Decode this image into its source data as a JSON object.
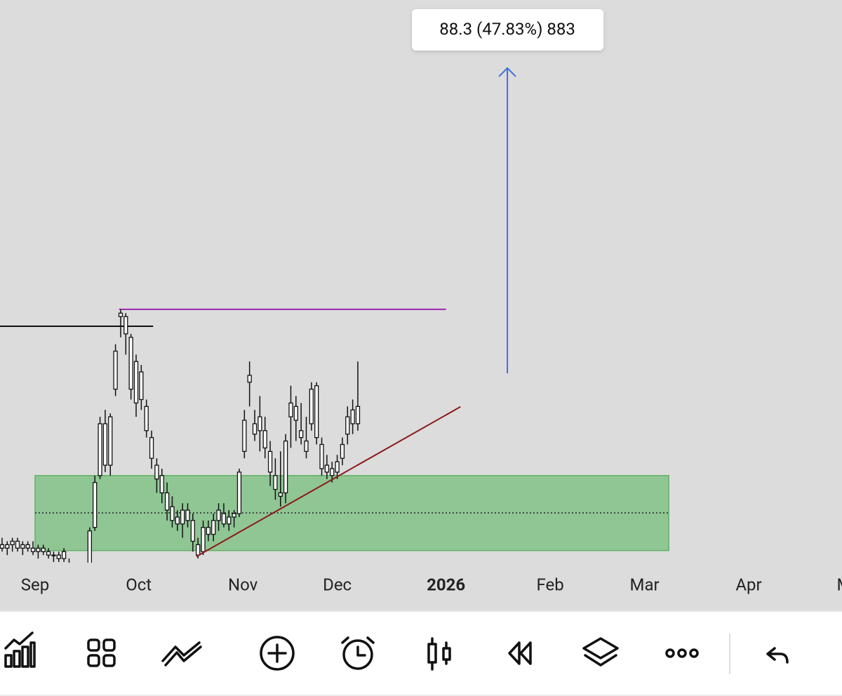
{
  "chart_data": {
    "type": "candlestick",
    "xlim": [
      -0.4,
      162.9
    ],
    "ylim": [
      130.2,
      292.6
    ],
    "xticks": [
      {
        "value": 6.4,
        "label": "Sep"
      },
      {
        "value": 26.5,
        "label": "Oct"
      },
      {
        "value": 46.7,
        "label": "Nov"
      },
      {
        "value": 65.0,
        "label": "Dec"
      },
      {
        "value": 86.1,
        "label": "2026"
      },
      {
        "value": 106.3,
        "label": "Feb"
      },
      {
        "value": 124.6,
        "label": "Mar"
      },
      {
        "value": 144.8,
        "label": "Apr"
      },
      {
        "value": 163.3,
        "label": "M"
      }
    ],
    "candles": {
      "color": "#111111",
      "open": [
        135,
        134,
        135,
        136,
        134,
        135,
        134,
        133,
        134,
        133,
        132,
        132,
        131,
        129,
        128,
        126,
        127,
        128,
        140,
        155,
        170,
        158,
        180,
        201,
        201,
        195,
        188,
        185,
        175,
        166,
        158,
        155,
        150,
        146,
        143,
        141,
        145,
        142,
        135,
        133,
        140,
        138,
        142,
        144,
        141,
        143,
        144,
        162,
        184,
        170,
        172,
        168,
        162,
        155,
        150,
        150,
        172,
        175,
        168,
        165,
        170,
        181,
        164,
        158,
        157,
        156,
        160,
        167,
        170,
        175
      ],
      "high": [
        137,
        136,
        137,
        137,
        136,
        136,
        136,
        135,
        135,
        134,
        133,
        133,
        134,
        131,
        129,
        128,
        129,
        140,
        155,
        172,
        174,
        173,
        193,
        203,
        202,
        196,
        190,
        187,
        177,
        168,
        160,
        157,
        153,
        149,
        145,
        147,
        147,
        144,
        137,
        142,
        142,
        144,
        147,
        147,
        145,
        145,
        157,
        174,
        188,
        174,
        178,
        172,
        165,
        160,
        162,
        167,
        181,
        178,
        176,
        172,
        182,
        182,
        166,
        161,
        159,
        161,
        166,
        175,
        177,
        188
      ],
      "low": [
        133,
        132,
        133,
        133,
        132,
        133,
        132,
        131,
        132,
        131,
        130,
        130,
        130,
        126,
        125,
        124,
        125,
        127,
        139,
        154,
        156,
        155,
        178,
        195,
        190,
        177,
        172,
        174,
        166,
        157,
        150,
        147,
        142,
        140,
        139,
        137,
        140,
        133,
        131,
        132,
        136,
        136,
        139,
        140,
        139,
        140,
        143,
        160,
        175,
        165,
        162,
        160,
        152,
        148,
        146,
        147,
        163,
        165,
        164,
        160,
        168,
        164,
        155,
        154,
        153,
        154,
        158,
        164,
        167,
        168
      ],
      "close": [
        134,
        135,
        136,
        134,
        135,
        134,
        133,
        134,
        133,
        132,
        132,
        131,
        133,
        128,
        126,
        127,
        128,
        139,
        153,
        170,
        158,
        172,
        191,
        202,
        196,
        180,
        176,
        177,
        168,
        160,
        154,
        150,
        145,
        142,
        141,
        145,
        142,
        136,
        132,
        140,
        138,
        142,
        145,
        141,
        143,
        144,
        156,
        171,
        182,
        167,
        168,
        163,
        156,
        151,
        149,
        165,
        176,
        171,
        166,
        162,
        180,
        166,
        157,
        156,
        155,
        159,
        164,
        172,
        174,
        170
      ]
    },
    "horizontal_lines": [
      {
        "y": 198.2,
        "x": [
          -0.4,
          29.3
        ],
        "color": "#111111"
      },
      {
        "y": 203.1,
        "x": [
          22.7,
          86.1
        ],
        "color": "#9c27b0"
      }
    ],
    "zone": {
      "x": [
        6.4,
        129.3
      ],
      "y": [
        133.3,
        155.0
      ],
      "mid": 144.2,
      "color": "#8fc694",
      "edge": "#62b066"
    },
    "trend_line": {
      "x": [
        37.7,
        88.9
      ],
      "y": [
        131.6,
        174.9
      ],
      "color": "#8b1a1a"
    },
    "measure": {
      "x": 98.0,
      "y": [
        184.6,
        272.9
      ],
      "color": "#3f6fe0",
      "label": "88.3 (47.83%) 883"
    }
  }
}
